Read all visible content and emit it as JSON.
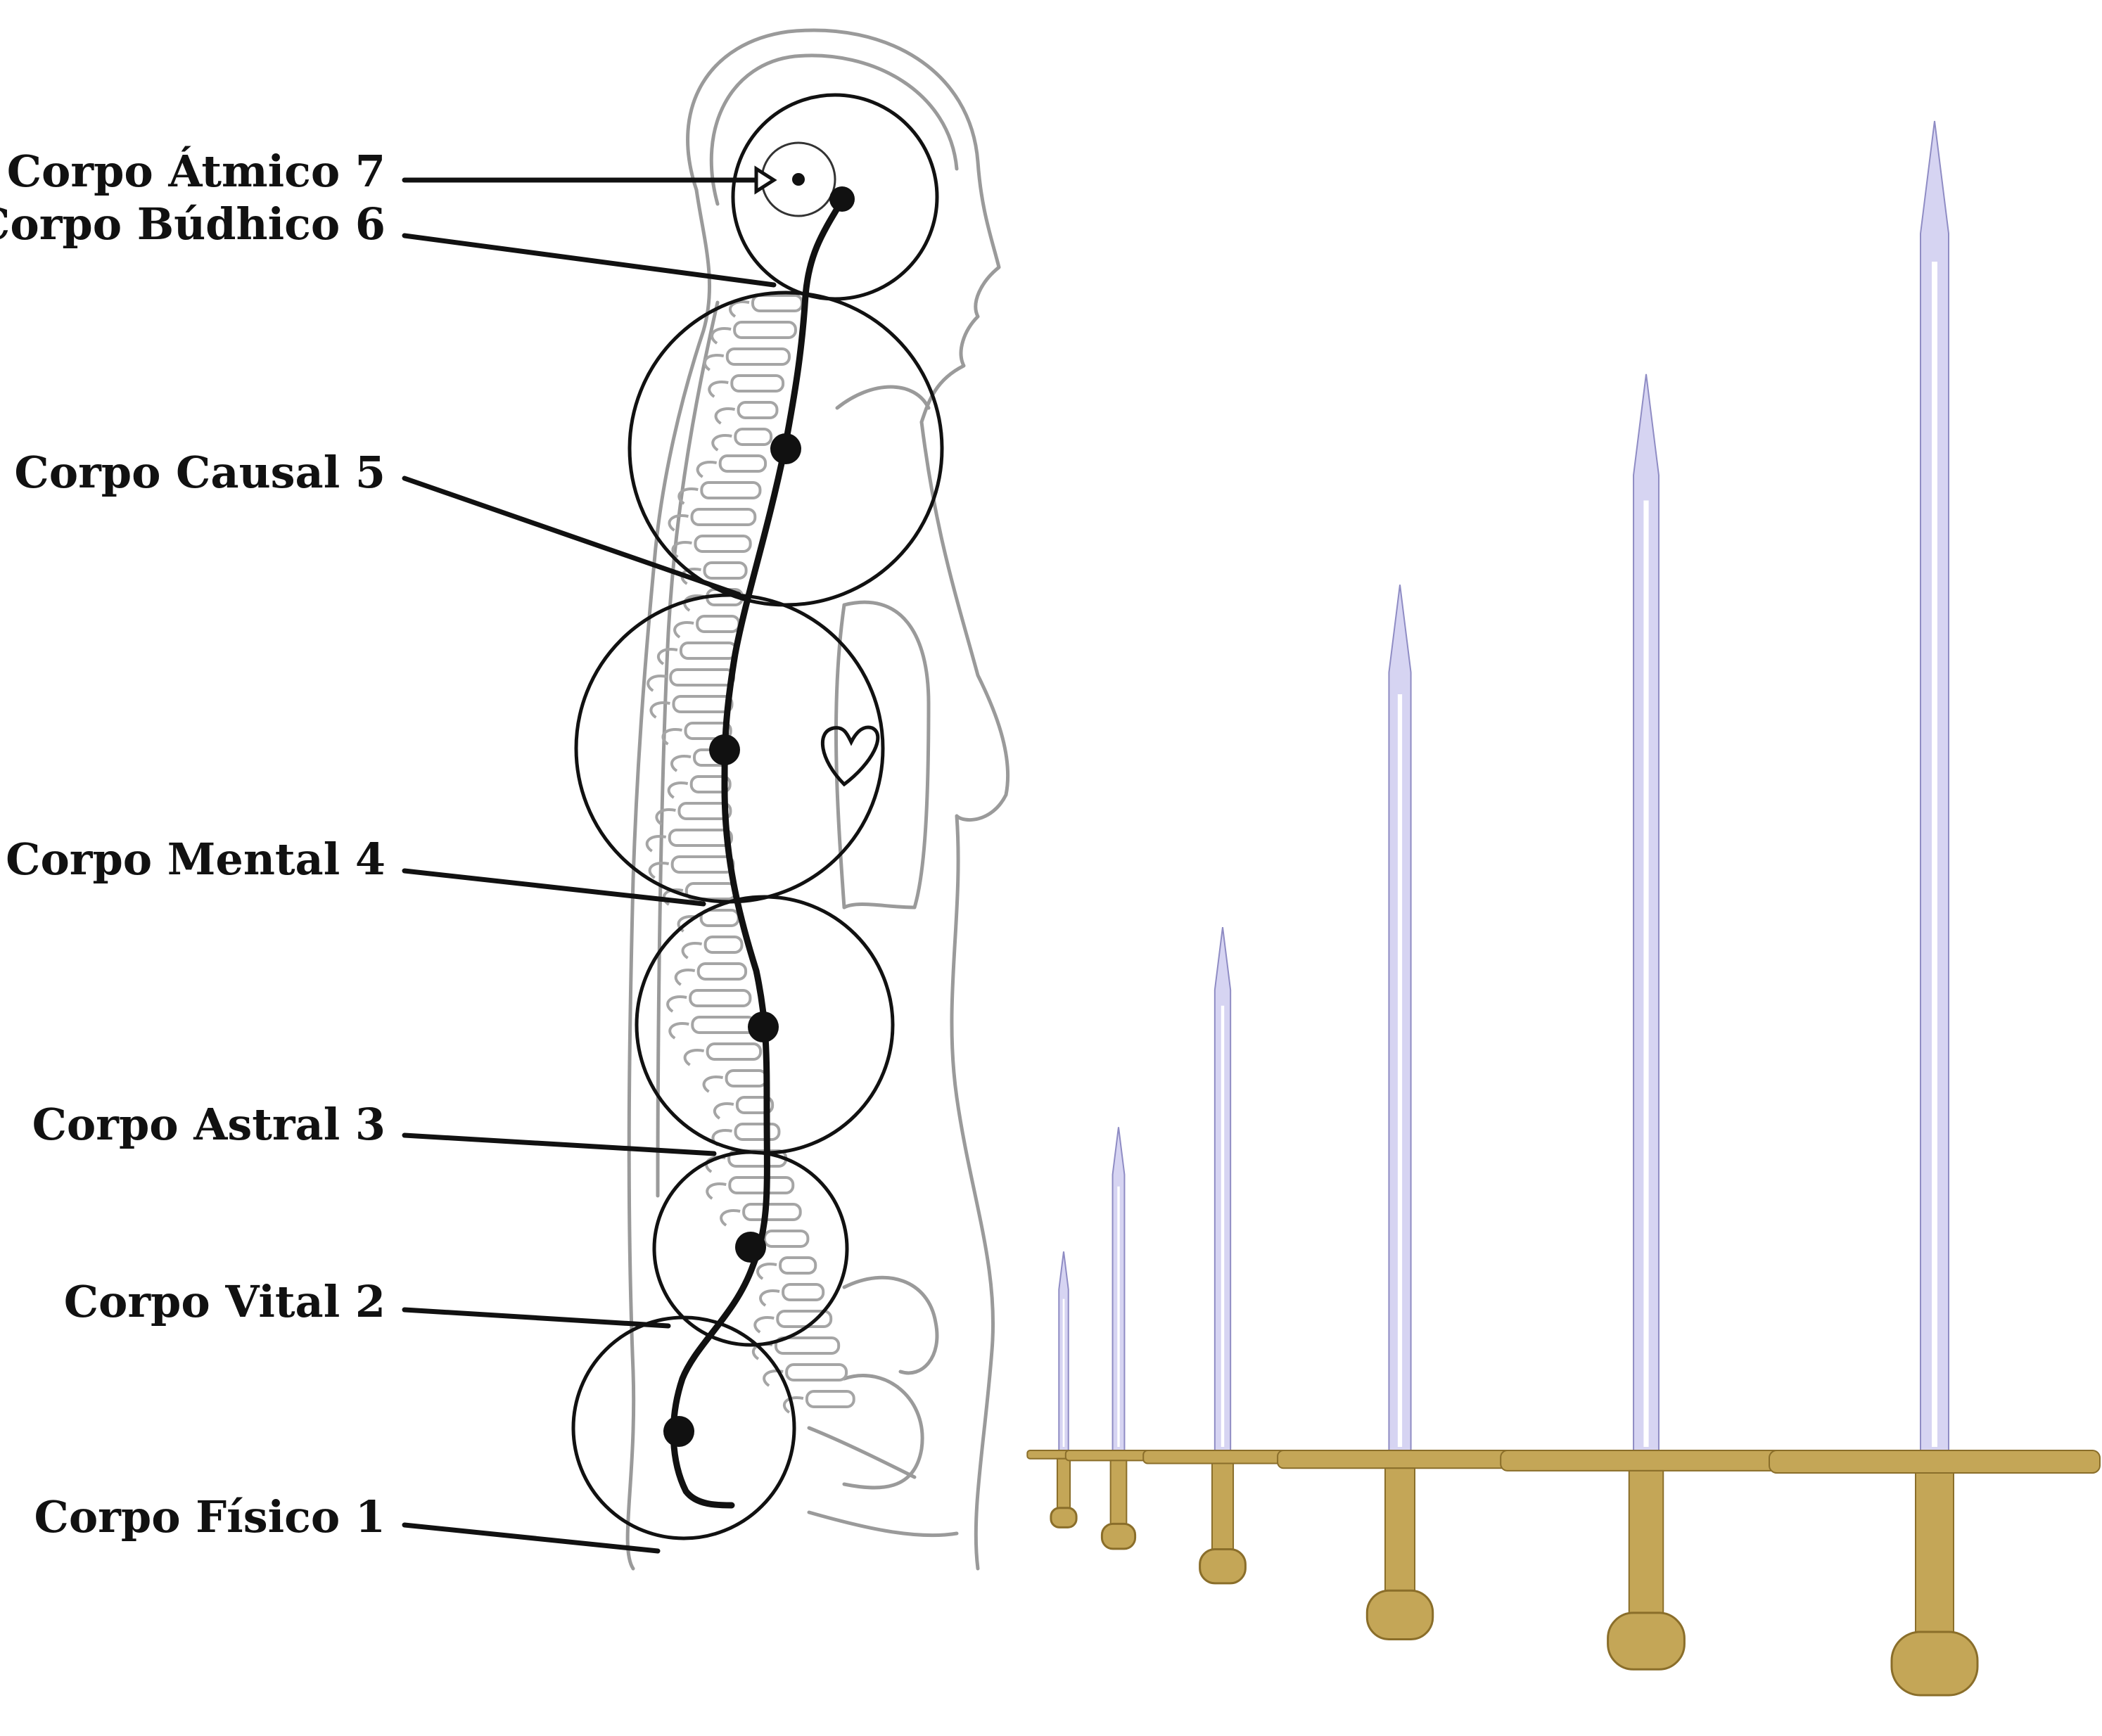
{
  "figure": {
    "body_labels": [
      {
        "id": "atmico",
        "text": "Corpo Átmico 7"
      },
      {
        "id": "budhico",
        "text": "Corpo Búdhico 6"
      },
      {
        "id": "causal",
        "text": "Corpo Causal 5"
      },
      {
        "id": "mental",
        "text": "Corpo Mental 4"
      },
      {
        "id": "astral",
        "text": "Corpo Astral 3"
      },
      {
        "id": "vital",
        "text": "Corpo Vital 2"
      },
      {
        "id": "fisico",
        "text": "Corpo Físico 1"
      }
    ],
    "colors": {
      "ink": "#111111",
      "sketch": "#9a9a9a",
      "blade": "#d6d4f2",
      "blade_edge": "#8f8cc4",
      "hilt": "#c4a657",
      "hilt_dark": "#8a6e2a"
    },
    "swords": [
      {
        "level": 1,
        "relative_size": 0.22
      },
      {
        "level": 2,
        "relative_size": 0.32
      },
      {
        "level": 3,
        "relative_size": 0.48
      },
      {
        "level": 4,
        "relative_size": 0.74
      },
      {
        "level": 5,
        "relative_size": 0.88
      },
      {
        "level": 6,
        "relative_size": 1.0
      }
    ]
  }
}
